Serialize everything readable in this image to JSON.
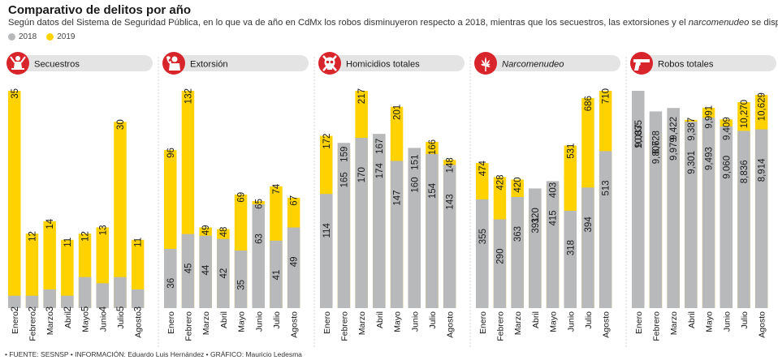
{
  "title": "Comparativo de delitos por año",
  "subtitle_parts": [
    {
      "text": "Según datos del Sistema de Seguridad Pública, en lo que va de año en CdMx los robos disminuyeron respecto a 2018, mientras que los secuestros, las extorsiones y el ",
      "italic": false
    },
    {
      "text": "narcomenudeo",
      "italic": true
    },
    {
      "text": " se dispararon.",
      "italic": false
    }
  ],
  "legend": [
    {
      "label": "2018",
      "color": "#b8b9bb"
    },
    {
      "label": "2019",
      "color": "#ffd200"
    }
  ],
  "footer": "• FUENTE: SESNSP • INFORMACIÓN: Eduardo Luis Hernández • GRÁFICO: Mauricio Ledesma",
  "colors": {
    "v2018": "#b8b9bb",
    "v2019": "#ffd200",
    "icon_circle": "#d7252b",
    "header_bg": "#e4e4e4"
  },
  "chart_data": [
    {
      "type": "bar",
      "title": "Secuestros",
      "icon": "person-hands-up-icon",
      "categories": [
        "Enero",
        "Febrero",
        "Marzo",
        "Abril",
        "Mayo",
        "Junio",
        "Julio",
        "Agosto"
      ],
      "series": [
        {
          "name": "2018",
          "values": [
            2,
            2,
            3,
            2,
            5,
            4,
            5,
            3
          ]
        },
        {
          "name": "2019",
          "values": [
            35,
            12,
            14,
            11,
            12,
            13,
            30,
            11
          ]
        }
      ],
      "labels_2018": [
        "2",
        "2",
        "3",
        "2",
        "5",
        "4",
        "5",
        "3"
      ],
      "labels_2019": [
        "35",
        "12",
        "14",
        "11",
        "12",
        "13",
        "30",
        "11"
      ]
    },
    {
      "type": "bar",
      "title": "Extorsión",
      "icon": "phone-caller-icon",
      "categories": [
        "Enero",
        "Febrero",
        "Marzo",
        "Abril",
        "Mayo",
        "Junio",
        "Julio",
        "Agosto"
      ],
      "series": [
        {
          "name": "2018",
          "values": [
            36,
            45,
            44,
            42,
            35,
            63,
            41,
            49
          ]
        },
        {
          "name": "2019",
          "values": [
            96,
            132,
            49,
            48,
            69,
            65,
            74,
            67
          ]
        }
      ],
      "labels_2018": [
        "36",
        "45",
        "44",
        "42",
        "35",
        "63",
        "41",
        "49"
      ],
      "labels_2019": [
        "96",
        "132",
        "49",
        "48",
        "69",
        "65",
        "74",
        "67"
      ]
    },
    {
      "type": "bar",
      "title": "Homicidios totales",
      "icon": "skull-crossbones-icon",
      "categories": [
        "Enero",
        "Febrero",
        "Marzo",
        "Abril",
        "Mayo",
        "Junio",
        "Julio",
        "Agosto"
      ],
      "series": [
        {
          "name": "2018",
          "values": [
            114,
            165,
            170,
            174,
            147,
            160,
            154,
            143
          ]
        },
        {
          "name": "2019",
          "values": [
            172,
            159,
            217,
            167,
            201,
            151,
            166,
            148
          ]
        }
      ],
      "labels_2018": [
        "114",
        "165",
        "170",
        "174",
        "147",
        "160",
        "154",
        "143"
      ],
      "labels_2019": [
        "172",
        "159",
        "217",
        "167",
        "201",
        "151",
        "166",
        "148"
      ]
    },
    {
      "type": "bar",
      "title": "Narcomenudeo",
      "title_italic": true,
      "icon": "cannabis-leaf-icon",
      "categories": [
        "Enero",
        "Febrero",
        "Marzo",
        "Abril",
        "Mayo",
        "Junio",
        "Julio",
        "Agosto"
      ],
      "series": [
        {
          "name": "2018",
          "values": [
            355,
            290,
            363,
            391,
            415,
            318,
            394,
            513
          ]
        },
        {
          "name": "2019",
          "values": [
            474,
            428,
            420,
            320,
            403,
            531,
            686,
            710
          ]
        }
      ],
      "labels_2018": [
        "355",
        "290",
        "363",
        "391",
        "415",
        "318",
        "394",
        "513"
      ],
      "labels_2019": [
        "474",
        "428",
        "420",
        "320",
        "403",
        "531",
        "686",
        "710"
      ]
    },
    {
      "type": "bar",
      "title": "Robos totales",
      "icon": "pistol-icon",
      "categories": [
        "Enero",
        "Febrero",
        "Marzo",
        "Abril",
        "Mayo",
        "Junio",
        "Julio",
        "Agosto"
      ],
      "series": [
        {
          "name": "2018",
          "values": [
            10835,
            9806,
            9979,
            9301,
            9493,
            9060,
            8836,
            8914
          ]
        },
        {
          "name": "2019",
          "values": [
            9037,
            8728,
            9422,
            9387,
            9991,
            9409,
            10270,
            10629
          ]
        }
      ],
      "labels_2018": [
        "10,835",
        "9,806",
        "9,979",
        "9,301",
        "9,493",
        "9,060",
        "8,836",
        "8,914"
      ],
      "labels_2019": [
        "9,037",
        "8,728",
        "9,422",
        "9,387",
        "9,991",
        "9,409",
        "10,270",
        "10,629"
      ]
    }
  ]
}
